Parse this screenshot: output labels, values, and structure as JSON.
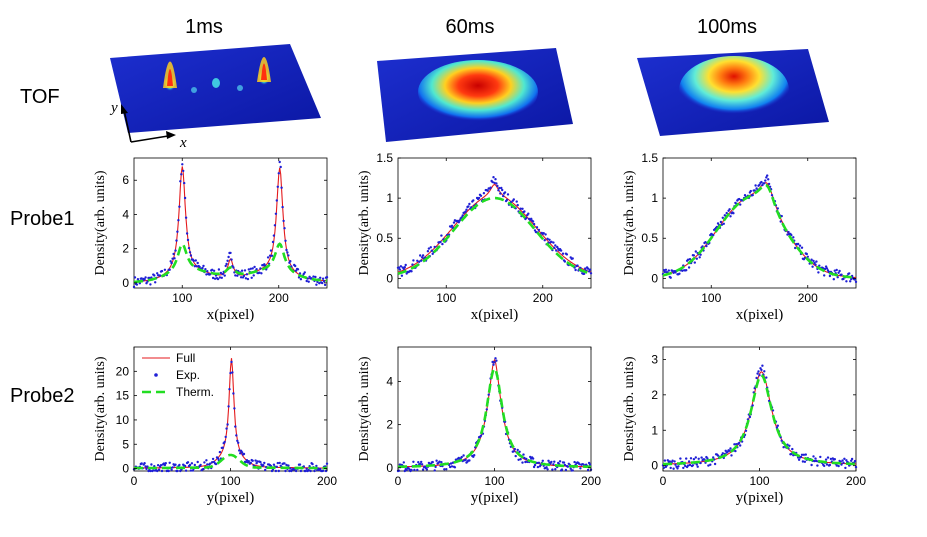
{
  "columns": [
    "1ms",
    "60ms",
    "100ms"
  ],
  "rows": [
    "TOF",
    "Probe1",
    "Probe2"
  ],
  "surface_axes": {
    "x": "x",
    "y": "y"
  },
  "colors": {
    "full": "#e41a1c",
    "exp": "#1f1fd6",
    "therm": "#22dd22"
  },
  "legend": [
    {
      "key": "full",
      "label": "Full"
    },
    {
      "key": "exp",
      "label": "Exp."
    },
    {
      "key": "therm",
      "label": "Therm."
    }
  ],
  "chart_data": [
    {
      "type": "line",
      "panel": "Probe1-1ms",
      "xlabel": "x(pixel)",
      "ylabel": "Density(arb. units)",
      "xlim": [
        50,
        250
      ],
      "ylim": [
        -0.3,
        7.3
      ],
      "xticks": [
        100,
        200
      ],
      "yticks": [
        0,
        2,
        4,
        6
      ],
      "series": [
        {
          "key": "full",
          "peaks": [
            [
              0.1,
              300,
              60,
              0
            ],
            [
              6.3,
              100,
              4,
              1
            ],
            [
              6.2,
              201,
              4,
              1
            ],
            [
              1.1,
              150,
              3.5,
              1
            ],
            [
              0.55,
              110,
              22,
              0
            ],
            [
              0.55,
              190,
              22,
              0
            ]
          ]
        },
        {
          "key": "exp",
          "peaks": [
            [
              0.1,
              300,
              60,
              0
            ],
            [
              6.5,
              100,
              4,
              1
            ],
            [
              6.4,
              201,
              4,
              1
            ],
            [
              1.3,
              150,
              3.5,
              1
            ],
            [
              0.55,
              110,
              22,
              0
            ],
            [
              0.55,
              190,
              22,
              0
            ]
          ]
        },
        {
          "key": "therm",
          "peaks": [
            [
              0.1,
              300,
              60,
              0
            ],
            [
              1.7,
              100,
              6,
              1
            ],
            [
              1.7,
              201,
              6,
              1
            ],
            [
              0.55,
              150,
              6,
              1
            ],
            [
              0.6,
              110,
              24,
              0
            ],
            [
              0.6,
              190,
              24,
              0
            ]
          ]
        }
      ]
    },
    {
      "type": "line",
      "panel": "Probe1-60ms",
      "xlabel": "x(pixel)",
      "ylabel": "Density(arb. units)",
      "xlim": [
        50,
        250
      ],
      "ylim": [
        -0.12,
        1.5
      ],
      "xticks": [
        100,
        200
      ],
      "yticks": [
        0,
        0.5,
        1,
        1.5
      ],
      "series": [
        {
          "key": "full",
          "peaks": [
            [
              1.02,
              150,
              44,
              0
            ],
            [
              0.15,
              150,
              5,
              1
            ]
          ]
        },
        {
          "key": "exp",
          "peaks": [
            [
              1.02,
              150,
              44,
              0
            ],
            [
              0.2,
              150,
              5,
              1
            ]
          ]
        },
        {
          "key": "therm",
          "peaks": [
            [
              1.0,
              150,
              42,
              0
            ]
          ]
        }
      ]
    },
    {
      "type": "line",
      "panel": "Probe1-100ms",
      "xlabel": "x(pixel)",
      "ylabel": "Density(arb. units)",
      "xlim": [
        50,
        250
      ],
      "ylim": [
        -0.12,
        1.5
      ],
      "xticks": [
        100,
        200
      ],
      "yticks": [
        0,
        0.5,
        1,
        1.5
      ],
      "series": [
        {
          "key": "full",
          "peaks": [
            [
              0.95,
              140,
              35,
              0
            ],
            [
              0.35,
              158,
              10,
              1
            ]
          ]
        },
        {
          "key": "exp",
          "peaks": [
            [
              0.95,
              140,
              35,
              0
            ],
            [
              0.4,
              158,
              10,
              1
            ]
          ]
        },
        {
          "key": "therm",
          "peaks": [
            [
              0.95,
              140,
              35,
              0
            ],
            [
              0.32,
              158,
              10,
              1
            ]
          ]
        }
      ]
    },
    {
      "type": "line",
      "panel": "Probe2-1ms",
      "xlabel": "y(pixel)",
      "ylabel": "Density(arb. units)",
      "xlim": [
        0,
        200
      ],
      "ylim": [
        -0.5,
        25
      ],
      "xticks": [
        0,
        100,
        200
      ],
      "yticks": [
        0,
        5,
        10,
        15,
        20
      ],
      "series": [
        {
          "key": "full",
          "peaks": [
            [
              20.5,
              101,
              3,
              1
            ],
            [
              2.0,
              100,
              12,
              0
            ],
            [
              0.2,
              100,
              80,
              0
            ]
          ]
        },
        {
          "key": "exp",
          "peaks": [
            [
              20.5,
              101,
              3,
              1
            ],
            [
              2.0,
              100,
              12,
              0
            ],
            [
              0.2,
              100,
              80,
              0
            ]
          ]
        },
        {
          "key": "therm",
          "peaks": [
            [
              2.6,
              100,
              9,
              0
            ],
            [
              0.2,
              100,
              80,
              0
            ]
          ]
        }
      ]
    },
    {
      "type": "line",
      "panel": "Probe2-60ms",
      "xlabel": "y(pixel)",
      "ylabel": "Density(arb. units)",
      "xlim": [
        0,
        200
      ],
      "ylim": [
        -0.15,
        5.6
      ],
      "xticks": [
        0,
        100,
        200
      ],
      "yticks": [
        0,
        2,
        4
      ],
      "series": [
        {
          "key": "full",
          "peaks": [
            [
              4.1,
              100,
              10,
              1
            ],
            [
              0.9,
              100,
              4,
              1
            ]
          ]
        },
        {
          "key": "exp",
          "peaks": [
            [
              4.1,
              100,
              10,
              1
            ],
            [
              1.0,
              100,
              4,
              1
            ]
          ]
        },
        {
          "key": "therm",
          "peaks": [
            [
              4.6,
              100,
              10,
              1
            ]
          ]
        }
      ]
    },
    {
      "type": "line",
      "panel": "Probe2-100ms",
      "xlabel": "y(pixel)",
      "ylabel": "Density(arb. units)",
      "xlim": [
        0,
        200
      ],
      "ylim": [
        -0.15,
        3.35
      ],
      "xticks": [
        0,
        100,
        200
      ],
      "yticks": [
        0,
        1,
        2,
        3
      ],
      "series": [
        {
          "key": "full",
          "peaks": [
            [
              2.65,
              102,
              13,
              1
            ]
          ]
        },
        {
          "key": "exp",
          "peaks": [
            [
              2.7,
              102,
              13,
              1
            ]
          ]
        },
        {
          "key": "therm",
          "peaks": [
            [
              2.55,
              102,
              13.5,
              1
            ]
          ]
        }
      ]
    }
  ]
}
